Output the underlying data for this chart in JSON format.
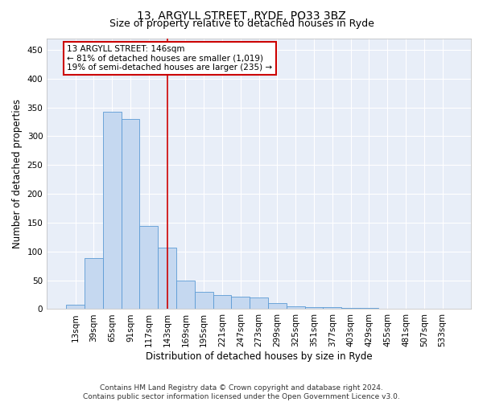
{
  "title_line1": "13, ARGYLL STREET, RYDE, PO33 3BZ",
  "title_line2": "Size of property relative to detached houses in Ryde",
  "xlabel": "Distribution of detached houses by size in Ryde",
  "ylabel": "Number of detached properties",
  "footnote": "Contains HM Land Registry data © Crown copyright and database right 2024.\nContains public sector information licensed under the Open Government Licence v3.0.",
  "categories": [
    "13sqm",
    "39sqm",
    "65sqm",
    "91sqm",
    "117sqm",
    "143sqm",
    "169sqm",
    "195sqm",
    "221sqm",
    "247sqm",
    "273sqm",
    "299sqm",
    "325sqm",
    "351sqm",
    "377sqm",
    "403sqm",
    "429sqm",
    "455sqm",
    "481sqm",
    "507sqm",
    "533sqm"
  ],
  "values": [
    8,
    88,
    343,
    330,
    145,
    107,
    50,
    30,
    25,
    22,
    20,
    10,
    5,
    4,
    4,
    2,
    2,
    1,
    0,
    0,
    1
  ],
  "bar_color": "#c5d8f0",
  "bar_edge_color": "#5b9bd5",
  "vline_index": 5,
  "vline_color": "#cc0000",
  "annotation_box_text": "13 ARGYLL STREET: 146sqm\n← 81% of detached houses are smaller (1,019)\n19% of semi-detached houses are larger (235) →",
  "annotation_box_color": "white",
  "annotation_box_edge_color": "#cc0000",
  "ylim": [
    0,
    470
  ],
  "yticks": [
    0,
    50,
    100,
    150,
    200,
    250,
    300,
    350,
    400,
    450
  ],
  "background_color": "#e8eef8",
  "grid_color": "white",
  "title1_fontsize": 10,
  "title2_fontsize": 9,
  "axis_label_fontsize": 8.5,
  "tick_fontsize": 7.5,
  "annotation_fontsize": 7.5,
  "footnote_fontsize": 6.5
}
